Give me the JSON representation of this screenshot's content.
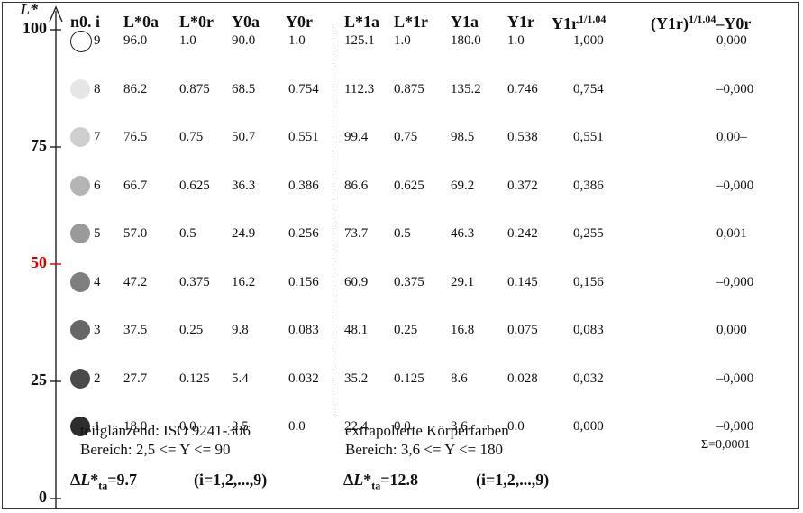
{
  "axis": {
    "label": "L*",
    "ticks": [
      {
        "label": "100",
        "value": 100,
        "red": false
      },
      {
        "label": "75",
        "value": 75,
        "red": false
      },
      {
        "label": "50",
        "value": 50,
        "red": true
      },
      {
        "label": "25",
        "value": 25,
        "red": false
      },
      {
        "label": "0",
        "value": 0,
        "red": false
      }
    ]
  },
  "headers": [
    {
      "text": "n0. i",
      "sup": ""
    },
    {
      "text": "L*0a",
      "sup": ""
    },
    {
      "text": "L*0r",
      "sup": ""
    },
    {
      "text": "Y0a",
      "sup": ""
    },
    {
      "text": "Y0r",
      "sup": ""
    },
    {
      "text": "L*1a",
      "sup": ""
    },
    {
      "text": "L*1r",
      "sup": ""
    },
    {
      "text": "Y1a",
      "sup": ""
    },
    {
      "text": "Y1r",
      "sup": ""
    },
    {
      "text": "Y1r",
      "sup": "1/1.04"
    },
    {
      "text": "(Y1r)",
      "sup": "1/1.04",
      "tail": "–Y0r"
    }
  ],
  "rows": [
    {
      "i": "9",
      "color": "#ffffff",
      "L0a": "96.0",
      "L0r": "1.0",
      "Y0a": "90.0",
      "Y0r": "1.0",
      "L1a": "125.1",
      "L1r": "1.0",
      "Y1a": "180.0",
      "Y1r": "1.0",
      "Y1rp": "1,000",
      "diff": "0,000"
    },
    {
      "i": "8",
      "color": "#e6e6e6",
      "L0a": "86.2",
      "L0r": "0.875",
      "Y0a": "68.5",
      "Y0r": "0.754",
      "L1a": "112.3",
      "L1r": "0.875",
      "Y1a": "135.2",
      "Y1r": "0.746",
      "Y1rp": "0,754",
      "diff": "–0,000"
    },
    {
      "i": "7",
      "color": "#cfcfcf",
      "L0a": "76.5",
      "L0r": "0.75",
      "Y0a": "50.7",
      "Y0r": "0.551",
      "L1a": "99.4",
      "L1r": "0.75",
      "Y1a": "98.5",
      "Y1r": "0.538",
      "Y1rp": "0,551",
      "diff": "0,00–"
    },
    {
      "i": "6",
      "color": "#b5b5b5",
      "L0a": "66.7",
      "L0r": "0.625",
      "Y0a": "36.3",
      "Y0r": "0.386",
      "L1a": "86.6",
      "L1r": "0.625",
      "Y1a": "69.2",
      "Y1r": "0.372",
      "Y1rp": "0,386",
      "diff": "–0,000"
    },
    {
      "i": "5",
      "color": "#9a9a9a",
      "L0a": "57.0",
      "L0r": "0.5",
      "Y0a": "24.9",
      "Y0r": "0.256",
      "L1a": "73.7",
      "L1r": "0.5",
      "Y1a": "46.3",
      "Y1r": "0.242",
      "Y1rp": "0,255",
      "diff": "0,001"
    },
    {
      "i": "4",
      "color": "#7f7f7f",
      "L0a": "47.2",
      "L0r": "0.375",
      "Y0a": "16.2",
      "Y0r": "0.156",
      "L1a": "60.9",
      "L1r": "0.375",
      "Y1a": "29.1",
      "Y1r": "0.145",
      "Y1rp": "0,156",
      "diff": "–0,000"
    },
    {
      "i": "3",
      "color": "#666666",
      "L0a": "37.5",
      "L0r": "0.25",
      "Y0a": "9.8",
      "Y0r": "0.083",
      "L1a": "48.1",
      "L1r": "0.25",
      "Y1a": "16.8",
      "Y1r": "0.075",
      "Y1rp": "0,083",
      "diff": "0,000"
    },
    {
      "i": "2",
      "color": "#4a4a4a",
      "L0a": "27.7",
      "L0r": "0.125",
      "Y0a": "5.4",
      "Y0r": "0.032",
      "L1a": "35.2",
      "L1r": "0.125",
      "Y1a": "8.6",
      "Y1r": "0.028",
      "Y1rp": "0,032",
      "diff": "–0,000"
    },
    {
      "i": "1",
      "color": "#2d2d2d",
      "L0a": "18.0",
      "L0r": "0.0",
      "Y0a": "2.5",
      "Y0r": "0.0",
      "L1a": "22.4",
      "L1r": "0.0",
      "Y1a": "3.6",
      "Y1r": "0.0",
      "Y1rp": "0,000",
      "diff": "–0,000"
    }
  ],
  "notes": {
    "left_line1": "teilglänzend: ISO 9241-306",
    "left_line2": "Bereich: 2,5 <= Y <= 90",
    "right_line1": "extrapolierte Körperfarben",
    "right_line2": "Bereich: 3,6 <= Y <= 180",
    "sum": "Σ=0,0001"
  },
  "deltas": {
    "left_value": "=9.7",
    "left_range": "(i=1,2,...,9)",
    "right_value": "=12.8",
    "right_range": "(i=1,2,...,9)",
    "sub": "ta"
  }
}
